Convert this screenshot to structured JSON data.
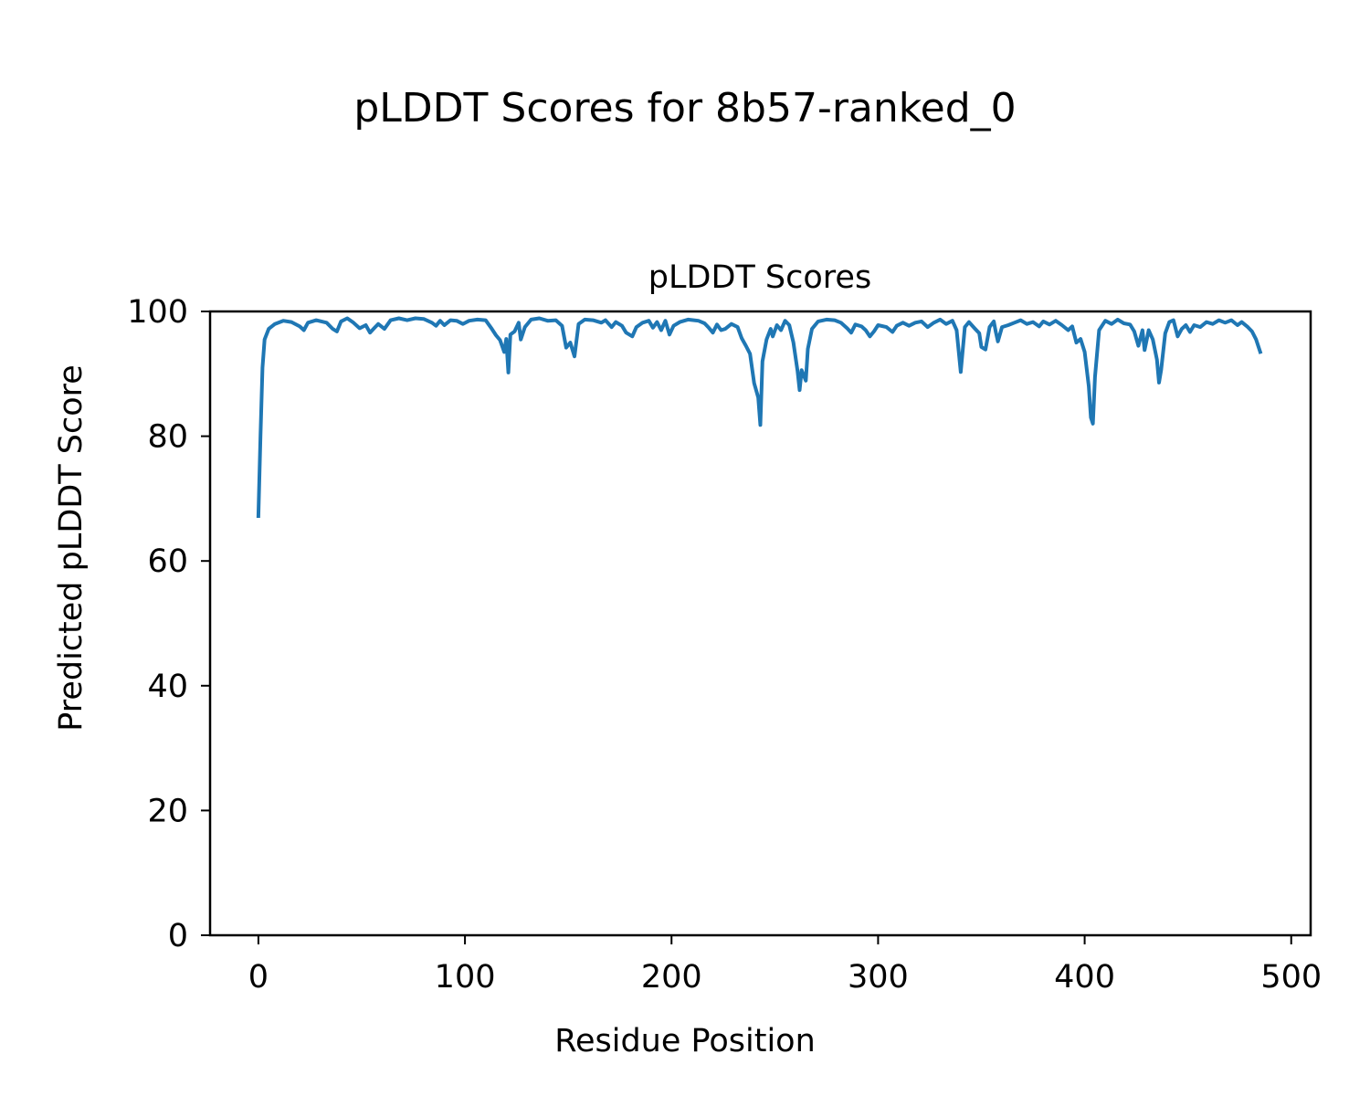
{
  "chart_data": {
    "type": "line",
    "suptitle": "pLDDT Scores for 8b57-ranked_0",
    "title": "pLDDT Scores",
    "xlabel": "Residue Position",
    "ylabel": "Predicted pLDDT Score",
    "xlim": [
      -23.4,
      509.4
    ],
    "ylim": [
      0,
      100
    ],
    "xticks": [
      0,
      100,
      200,
      300,
      400,
      500
    ],
    "yticks": [
      0,
      20,
      40,
      60,
      80,
      100
    ],
    "grid": false,
    "series": [
      {
        "color": "#1f77b4",
        "points": [
          [
            0,
            67.2
          ],
          [
            1,
            80
          ],
          [
            2,
            91
          ],
          [
            3,
            95.5
          ],
          [
            5,
            97.2
          ],
          [
            8,
            98
          ],
          [
            12,
            98.5
          ],
          [
            16,
            98.3
          ],
          [
            20,
            97.6
          ],
          [
            22,
            97.0
          ],
          [
            24,
            98.2
          ],
          [
            28,
            98.6
          ],
          [
            33,
            98.2
          ],
          [
            36,
            97.2
          ],
          [
            38,
            96.8
          ],
          [
            40,
            98.4
          ],
          [
            43,
            98.9
          ],
          [
            46,
            98.2
          ],
          [
            49,
            97.3
          ],
          [
            52,
            97.8
          ],
          [
            54,
            96.6
          ],
          [
            56,
            97.3
          ],
          [
            58,
            98.0
          ],
          [
            61,
            97.2
          ],
          [
            64,
            98.6
          ],
          [
            68,
            98.9
          ],
          [
            72,
            98.6
          ],
          [
            76,
            98.9
          ],
          [
            80,
            98.8
          ],
          [
            84,
            98.2
          ],
          [
            86,
            97.7
          ],
          [
            88,
            98.5
          ],
          [
            90,
            97.8
          ],
          [
            93,
            98.6
          ],
          [
            96,
            98.5
          ],
          [
            99,
            98.0
          ],
          [
            102,
            98.5
          ],
          [
            106,
            98.7
          ],
          [
            110,
            98.6
          ],
          [
            113,
            97.2
          ],
          [
            115,
            96.2
          ],
          [
            117,
            95.4
          ],
          [
            119,
            93.5
          ],
          [
            120,
            95.6
          ],
          [
            121,
            90.2
          ],
          [
            122,
            96.3
          ],
          [
            124,
            96.8
          ],
          [
            126,
            98.2
          ],
          [
            127,
            95.5
          ],
          [
            129,
            97.5
          ],
          [
            132,
            98.7
          ],
          [
            136,
            98.9
          ],
          [
            140,
            98.5
          ],
          [
            144,
            98.6
          ],
          [
            147,
            97.7
          ],
          [
            149,
            94.2
          ],
          [
            151,
            95.0
          ],
          [
            153,
            92.8
          ],
          [
            155,
            98.0
          ],
          [
            158,
            98.7
          ],
          [
            162,
            98.6
          ],
          [
            166,
            98.2
          ],
          [
            168,
            98.6
          ],
          [
            171,
            97.5
          ],
          [
            173,
            98.3
          ],
          [
            176,
            97.7
          ],
          [
            178,
            96.6
          ],
          [
            181,
            96.0
          ],
          [
            183,
            97.5
          ],
          [
            186,
            98.2
          ],
          [
            189,
            98.5
          ],
          [
            191,
            97.4
          ],
          [
            193,
            98.3
          ],
          [
            195,
            97.0
          ],
          [
            197,
            98.5
          ],
          [
            199,
            96.3
          ],
          [
            201,
            97.7
          ],
          [
            204,
            98.3
          ],
          [
            208,
            98.7
          ],
          [
            213,
            98.5
          ],
          [
            216,
            98.1
          ],
          [
            218,
            97.4
          ],
          [
            220,
            96.6
          ],
          [
            222,
            97.9
          ],
          [
            224,
            97.0
          ],
          [
            226,
            97.2
          ],
          [
            229,
            98.0
          ],
          [
            232,
            97.5
          ],
          [
            234,
            95.7
          ],
          [
            236,
            94.5
          ],
          [
            238,
            93.2
          ],
          [
            240,
            88.5
          ],
          [
            242,
            86.2
          ],
          [
            243,
            81.8
          ],
          [
            244,
            92.0
          ],
          [
            246,
            95.5
          ],
          [
            248,
            97.2
          ],
          [
            249,
            96.0
          ],
          [
            251,
            97.8
          ],
          [
            253,
            97.0
          ],
          [
            255,
            98.5
          ],
          [
            257,
            97.8
          ],
          [
            259,
            95.0
          ],
          [
            261,
            90.5
          ],
          [
            262,
            87.4
          ],
          [
            263,
            90.6
          ],
          [
            265,
            88.9
          ],
          [
            266,
            94.0
          ],
          [
            268,
            97.2
          ],
          [
            271,
            98.4
          ],
          [
            275,
            98.7
          ],
          [
            279,
            98.6
          ],
          [
            282,
            98.2
          ],
          [
            285,
            97.3
          ],
          [
            287,
            96.6
          ],
          [
            289,
            97.9
          ],
          [
            292,
            97.6
          ],
          [
            294,
            97.0
          ],
          [
            296,
            96.0
          ],
          [
            298,
            96.8
          ],
          [
            300,
            97.8
          ],
          [
            304,
            97.5
          ],
          [
            307,
            96.7
          ],
          [
            309,
            97.7
          ],
          [
            312,
            98.2
          ],
          [
            315,
            97.7
          ],
          [
            318,
            98.2
          ],
          [
            321,
            98.4
          ],
          [
            324,
            97.5
          ],
          [
            327,
            98.2
          ],
          [
            330,
            98.7
          ],
          [
            333,
            98.0
          ],
          [
            336,
            98.5
          ],
          [
            338,
            97.0
          ],
          [
            340,
            90.3
          ],
          [
            342,
            97.5
          ],
          [
            344,
            98.3
          ],
          [
            347,
            97.2
          ],
          [
            349,
            96.5
          ],
          [
            350,
            94.3
          ],
          [
            352,
            93.9
          ],
          [
            354,
            97.5
          ],
          [
            356,
            98.4
          ],
          [
            357,
            96.7
          ],
          [
            358,
            95.2
          ],
          [
            360,
            97.5
          ],
          [
            363,
            97.8
          ],
          [
            366,
            98.2
          ],
          [
            369,
            98.6
          ],
          [
            372,
            98.0
          ],
          [
            375,
            98.3
          ],
          [
            378,
            97.6
          ],
          [
            380,
            98.4
          ],
          [
            383,
            97.9
          ],
          [
            386,
            98.5
          ],
          [
            389,
            97.8
          ],
          [
            392,
            97.0
          ],
          [
            394,
            97.6
          ],
          [
            396,
            95.0
          ],
          [
            398,
            95.6
          ],
          [
            400,
            93.5
          ],
          [
            402,
            88.0
          ],
          [
            403,
            83.0
          ],
          [
            404,
            82.0
          ],
          [
            405,
            89.5
          ],
          [
            407,
            97.0
          ],
          [
            410,
            98.5
          ],
          [
            413,
            98.0
          ],
          [
            416,
            98.7
          ],
          [
            419,
            98.1
          ],
          [
            422,
            97.9
          ],
          [
            424,
            96.8
          ],
          [
            426,
            94.5
          ],
          [
            428,
            97.0
          ],
          [
            429,
            93.8
          ],
          [
            431,
            97.0
          ],
          [
            433,
            95.5
          ],
          [
            435,
            92.3
          ],
          [
            436,
            88.6
          ],
          [
            437,
            90.6
          ],
          [
            439,
            96.5
          ],
          [
            441,
            98.3
          ],
          [
            443,
            98.6
          ],
          [
            445,
            96.0
          ],
          [
            447,
            97.2
          ],
          [
            449,
            97.8
          ],
          [
            451,
            96.7
          ],
          [
            453,
            97.8
          ],
          [
            456,
            97.5
          ],
          [
            459,
            98.3
          ],
          [
            462,
            98.0
          ],
          [
            465,
            98.6
          ],
          [
            468,
            98.2
          ],
          [
            471,
            98.6
          ],
          [
            474,
            97.8
          ],
          [
            476,
            98.3
          ],
          [
            479,
            97.5
          ],
          [
            481,
            96.8
          ],
          [
            483,
            95.5
          ],
          [
            485,
            93.5
          ]
        ]
      }
    ]
  }
}
